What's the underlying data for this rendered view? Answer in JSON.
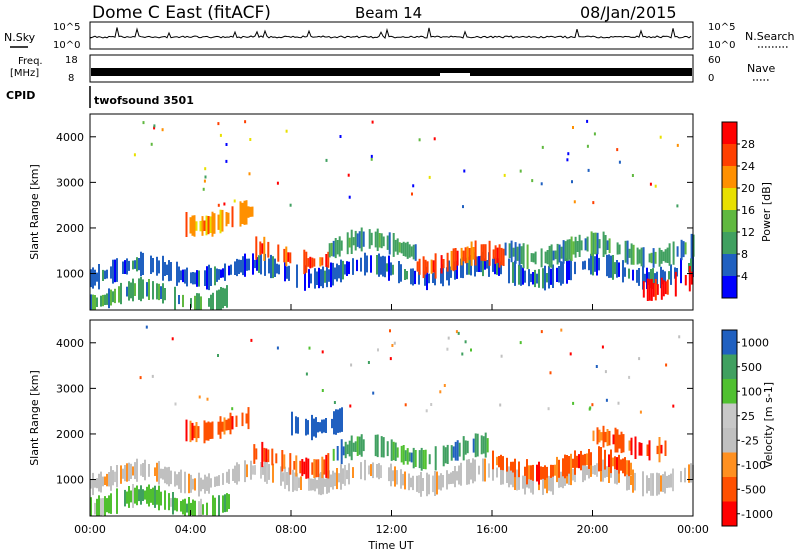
{
  "header": {
    "station": "Dome C East (fitACF)",
    "beam": "Beam 14",
    "date": "08/Jan/2015"
  },
  "top_panels": {
    "nsky_label": "N.Sky",
    "nsearch_label": "N.Search",
    "noise_ticks": [
      "10^5",
      "10^0"
    ],
    "freq_label_1": "Freq.",
    "freq_label_2": "[MHz]",
    "freq_ticks": [
      "18",
      "8"
    ],
    "nave_label": "Nave",
    "nave_ticks": [
      "60",
      "0"
    ],
    "cpid_label": "CPID",
    "cpid_value": "twofsound 3501"
  },
  "colors": {
    "power_scale": [
      "#0000ff",
      "#2060c0",
      "#40a060",
      "#60b840",
      "#e8e000",
      "#ff9000",
      "#ff4000",
      "#ff0000"
    ],
    "velocity_scale": [
      "#ff0000",
      "#ff5000",
      "#ff9020",
      "#c0c0c0",
      "#c8c8c8",
      "#50c030",
      "#40a060",
      "#2060c0"
    ]
  },
  "chart_data": [
    {
      "type": "heatmap",
      "name": "power",
      "ylabel": "Slant Range [km]",
      "yticks": [
        "1000",
        "2000",
        "3000",
        "4000"
      ],
      "ylim": [
        200,
        4500
      ],
      "colorbar_label": "Power [dB]",
      "colorbar_ticks": [
        "4",
        "8",
        "12",
        "16",
        "20",
        "24",
        "28"
      ],
      "echo_bands": [
        {
          "start_h": 0.0,
          "end_h": 5.5,
          "range_km": 500,
          "value": 12
        },
        {
          "start_h": 0.0,
          "end_h": 24.0,
          "range_km": 1050,
          "value": 8
        },
        {
          "start_h": 3.8,
          "end_h": 6.5,
          "range_km": 2200,
          "value": 20
        },
        {
          "start_h": 6.5,
          "end_h": 9.5,
          "range_km": 1400,
          "value": 24
        },
        {
          "start_h": 9.5,
          "end_h": 13.0,
          "range_km": 1600,
          "value": 12
        },
        {
          "start_h": 13.0,
          "end_h": 16.5,
          "range_km": 1300,
          "value": 24
        },
        {
          "start_h": 16.5,
          "end_h": 24.0,
          "range_km": 1500,
          "value": 12
        },
        {
          "start_h": 22.0,
          "end_h": 24.0,
          "range_km": 800,
          "value": 28
        }
      ]
    },
    {
      "type": "heatmap",
      "name": "velocity",
      "xlabel": "Time UT",
      "xticks": [
        "00:00",
        "04:00",
        "08:00",
        "12:00",
        "16:00",
        "20:00",
        "00:00"
      ],
      "xlim": [
        0,
        24
      ],
      "ylabel": "Slant Range [km]",
      "yticks": [
        "1000",
        "2000",
        "3000",
        "4000"
      ],
      "ylim": [
        200,
        4500
      ],
      "colorbar_label": "Velocity [m s-1]",
      "colorbar_ticks": [
        "1000",
        "500",
        "100",
        "25",
        "-25",
        "-100",
        "-500",
        "-1000"
      ],
      "echo_bands": [
        {
          "start_h": 0.0,
          "end_h": 5.5,
          "range_km": 500,
          "value": 100
        },
        {
          "start_h": 0.0,
          "end_h": 24.0,
          "range_km": 1050,
          "value": 0
        },
        {
          "start_h": 3.8,
          "end_h": 6.5,
          "range_km": 2200,
          "value": -500
        },
        {
          "start_h": 6.5,
          "end_h": 9.5,
          "range_km": 1400,
          "value": -500
        },
        {
          "start_h": 8.0,
          "end_h": 10.0,
          "range_km": 2300,
          "value": 1000
        },
        {
          "start_h": 9.5,
          "end_h": 16.0,
          "range_km": 1600,
          "value": 500
        },
        {
          "start_h": 16.0,
          "end_h": 21.5,
          "range_km": 1300,
          "value": -500
        },
        {
          "start_h": 20.0,
          "end_h": 23.0,
          "range_km": 1800,
          "value": -500
        }
      ]
    }
  ]
}
